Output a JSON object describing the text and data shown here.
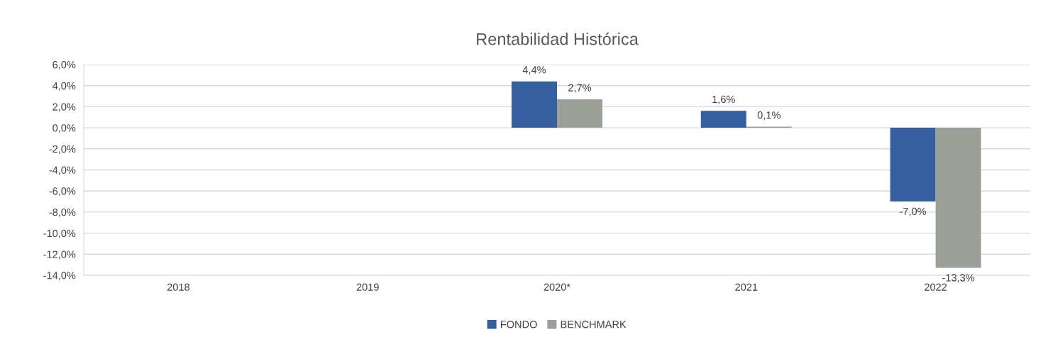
{
  "chart_data": {
    "type": "bar",
    "title": "Rentabilidad Histórica",
    "categories": [
      "2018",
      "2019",
      "2020*",
      "2021",
      "2022"
    ],
    "series": [
      {
        "name": "FONDO",
        "color": "#365f9f",
        "values": [
          null,
          null,
          4.4,
          1.6,
          -7.0
        ],
        "value_labels": [
          null,
          null,
          "4,4%",
          "1,6%",
          "-7,0%"
        ]
      },
      {
        "name": "BENCHMARK",
        "color": "#9aa097",
        "values": [
          null,
          null,
          2.7,
          0.1,
          -13.3
        ],
        "value_labels": [
          null,
          null,
          "2,7%",
          "0,1%",
          "-13,3%"
        ]
      }
    ],
    "ylim": [
      -14,
      6
    ],
    "yticks": [
      {
        "value": 6,
        "label": "6,0%"
      },
      {
        "value": 4,
        "label": "4,0%"
      },
      {
        "value": 2,
        "label": "2,0%"
      },
      {
        "value": 0,
        "label": "0,0%"
      },
      {
        "value": -2,
        "label": "-2,0%"
      },
      {
        "value": -4,
        "label": "-4,0%"
      },
      {
        "value": -6,
        "label": "-6,0%"
      },
      {
        "value": -8,
        "label": "-8,0%"
      },
      {
        "value": -10,
        "label": "-10,0%"
      },
      {
        "value": -12,
        "label": "-12,0%"
      },
      {
        "value": -14,
        "label": "-14,0%"
      }
    ],
    "grid": "y",
    "legend": "bottom"
  }
}
